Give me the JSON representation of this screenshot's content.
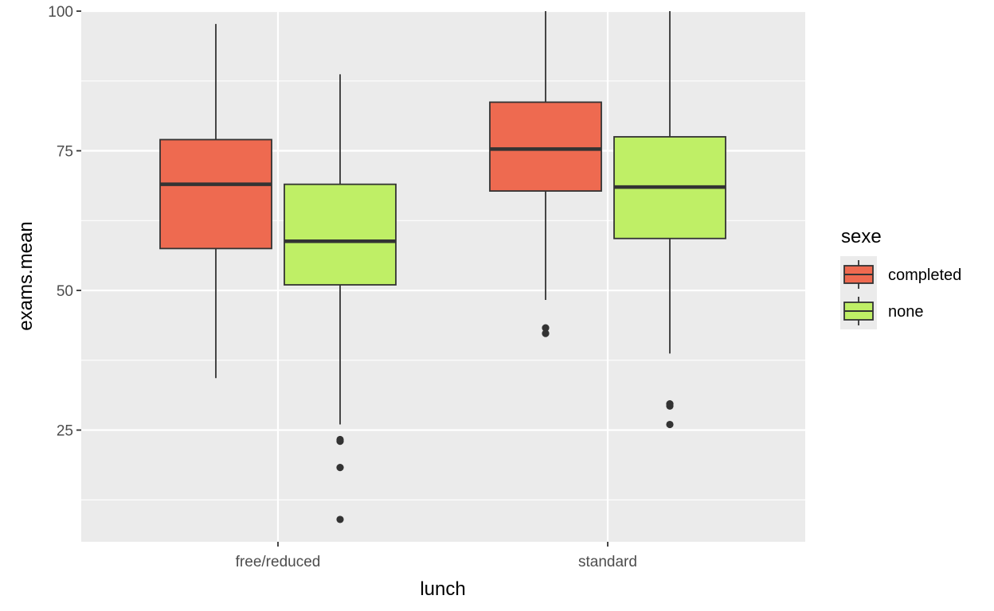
{
  "chart_data": {
    "type": "boxplot",
    "title": "",
    "xlabel": "lunch",
    "ylabel": "exams.mean",
    "categories": [
      "free/reduced",
      "standard"
    ],
    "ylim": [
      5,
      100
    ],
    "yticks": [
      25,
      50,
      75,
      100
    ],
    "grid": true,
    "legend": {
      "title": "sexe",
      "position": "right",
      "entries": [
        "completed",
        "none"
      ]
    },
    "colors": {
      "completed": "#EE6A50",
      "none": "#BFEF66",
      "panel": "#EBEBEB",
      "grid": "#FFFFFF",
      "outline": "#333333"
    },
    "series": [
      {
        "name": "completed",
        "boxes": [
          {
            "category": "free/reduced",
            "whisker_low": 34.3,
            "q1": 57.5,
            "median": 69.0,
            "q3": 77.0,
            "whisker_high": 97.7,
            "outliers": []
          },
          {
            "category": "standard",
            "whisker_low": 48.3,
            "q1": 67.8,
            "median": 75.3,
            "q3": 83.7,
            "whisker_high": 100,
            "outliers": [
              42.3,
              43.3
            ]
          }
        ]
      },
      {
        "name": "none",
        "boxes": [
          {
            "category": "free/reduced",
            "whisker_low": 26.0,
            "q1": 51.0,
            "median": 58.8,
            "q3": 69.0,
            "whisker_high": 88.7,
            "outliers": [
              23.0,
              23.3,
              18.3,
              9.0
            ]
          },
          {
            "category": "standard",
            "whisker_low": 38.7,
            "q1": 59.3,
            "median": 68.5,
            "q3": 77.5,
            "whisker_high": 100,
            "outliers": [
              29.3,
              29.7,
              26.0
            ]
          }
        ]
      }
    ]
  }
}
